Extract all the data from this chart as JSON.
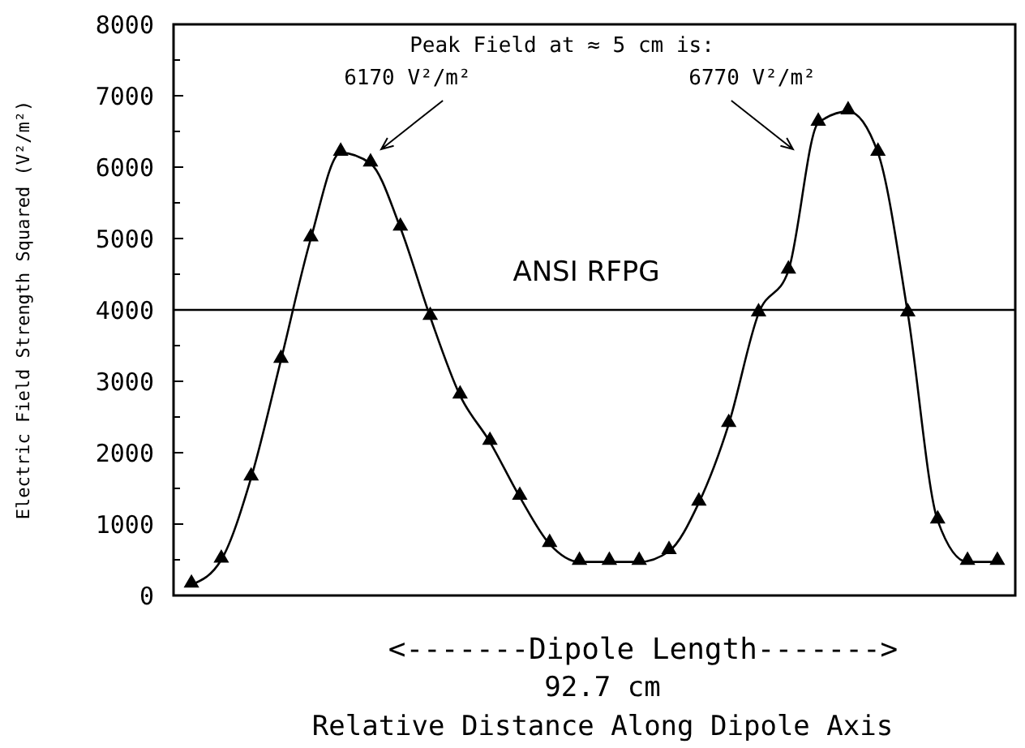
{
  "chart_data": {
    "type": "line",
    "xlabel": "Relative Distance Along Dipole Axis",
    "ylabel": "Electric Field Strength Squared (V²/m²)",
    "categories": [
      null,
      null,
      null,
      null,
      null,
      null,
      null,
      null,
      null,
      null,
      null,
      null,
      null,
      null,
      null,
      null,
      null,
      null,
      null,
      null,
      null,
      null,
      null,
      null,
      null,
      null,
      null,
      null
    ],
    "series": [
      {
        "color": "#000000",
        "values": [
          150,
          500,
          1650,
          3300,
          5000,
          6200,
          6050,
          5150,
          3900,
          2800,
          2150,
          1380,
          720,
          470,
          470,
          470,
          620,
          1300,
          2400,
          3950,
          4550,
          6620,
          6780,
          6200,
          3950,
          1050,
          470,
          470
        ]
      }
    ],
    "ylim": [
      0,
      8000
    ],
    "yticks": [
      0,
      {
        "value": 500,
        "label": null
      },
      1000,
      {
        "value": 1500,
        "label": null
      },
      2000,
      {
        "value": 2500,
        "label": null
      },
      3000,
      {
        "value": 3500,
        "label": null
      },
      4000,
      {
        "value": 4500,
        "label": null
      },
      5000,
      {
        "value": 5500,
        "label": null
      },
      6000,
      {
        "value": 6500,
        "label": null
      },
      7000,
      {
        "value": 7500,
        "label": null
      },
      8000
    ],
    "ref_lines": [
      {
        "axis": "y",
        "value": 4000,
        "label": "ANSI RFPG",
        "color": "#000000"
      }
    ],
    "annotations": [
      "Peak Field at ≈ 5 cm is:",
      "6170 V²/m²",
      "6770 V²/m²",
      "<-------Dipole Length------->",
      "92.7 cm"
    ],
    "marker": "triangle",
    "line_style": "solid",
    "grid": false
  }
}
